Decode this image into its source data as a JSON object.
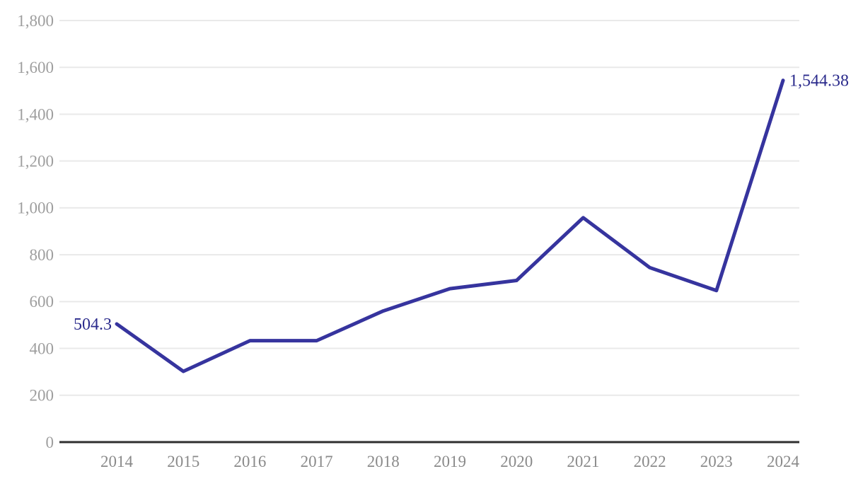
{
  "chart_data": {
    "type": "line",
    "title": "",
    "xlabel": "",
    "ylabel": "",
    "categories": [
      "2014",
      "2015",
      "2016",
      "2017",
      "2018",
      "2019",
      "2020",
      "2021",
      "2022",
      "2023",
      "2024"
    ],
    "series": [
      {
        "name": "value",
        "values": [
          504.3,
          302,
          433,
          433,
          560,
          655,
          690,
          958,
          745,
          647,
          1544.38
        ]
      }
    ],
    "point_labels": [
      {
        "index": 0,
        "text": "504.3",
        "side": "left"
      },
      {
        "index": 10,
        "text": "1,544.38",
        "side": "right"
      }
    ],
    "ylim": [
      0,
      1800
    ],
    "y_tick_values": [
      0,
      200,
      400,
      600,
      800,
      1000,
      1200,
      1400,
      1600,
      1800
    ],
    "y_tick_labels": [
      "0",
      "200",
      "400",
      "600",
      "800",
      "1,000",
      "1,200",
      "1,400",
      "1,600",
      "1,800"
    ],
    "grid": "horizontal",
    "legend": "none",
    "colors": {
      "line": "#36349e",
      "point_label": "#2b2b8c",
      "y_tick_text": "#9e9e9e",
      "x_tick_text": "#8a8a8a",
      "gridline": "#e9e9e9",
      "axis_line": "#2f2f2f",
      "background": "#ffffff"
    }
  }
}
